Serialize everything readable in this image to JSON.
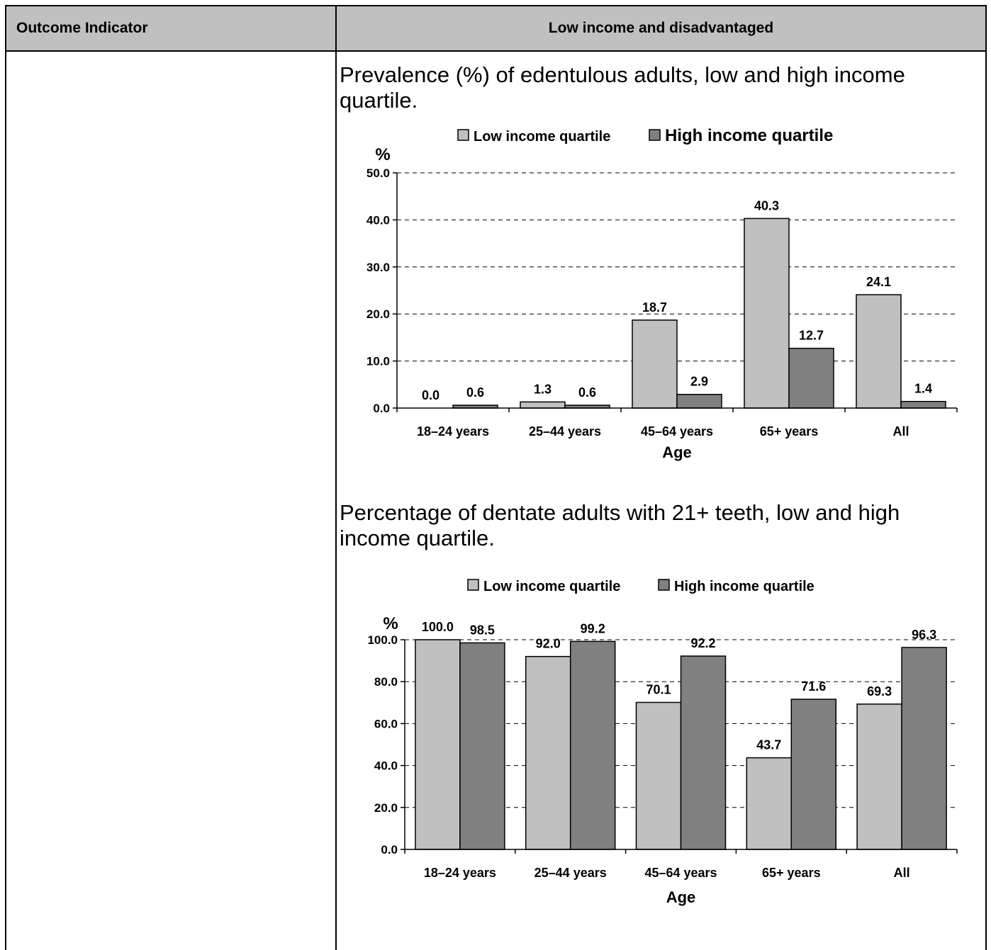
{
  "table": {
    "header_left": "Outcome Indicator",
    "header_right": "Low income and disadvantaged"
  },
  "colors": {
    "low": "#c0c0c0",
    "high": "#808080",
    "header_bg": "#c0c0c0"
  },
  "chart_data": [
    {
      "type": "bar",
      "caption": "Prevalence (%) of edentulous adults, low and high income quartile.",
      "categories": [
        "18–24 years",
        "25–44 years",
        "45–64 years",
        "65+ years",
        "All"
      ],
      "series": [
        {
          "name": "Low income quartile",
          "values": [
            0.0,
            1.3,
            18.7,
            40.3,
            24.1
          ]
        },
        {
          "name": "High income quartile",
          "values": [
            0.6,
            0.6,
            2.9,
            12.7,
            1.4
          ]
        }
      ],
      "value_labels": {
        "low": [
          "0.0",
          "1.3",
          "18.7",
          "40.3",
          "24.1"
        ],
        "high": [
          "0.6",
          "0.6",
          "2.9",
          "12.7",
          "1.4"
        ]
      },
      "xlabel": "Age",
      "ylabel": "%",
      "ylim": [
        0,
        50
      ],
      "yticks": [
        "0.0",
        "10.0",
        "20.0",
        "30.0",
        "40.0",
        "50.0"
      ],
      "grid": "dashed-horizontal",
      "legend": "top"
    },
    {
      "type": "bar",
      "caption": "Percentage of dentate adults with 21+ teeth, low and high income quartile.",
      "categories": [
        "18–24 years",
        "25–44 years",
        "45–64 years",
        "65+ years",
        "All"
      ],
      "series": [
        {
          "name": "Low income quartile",
          "values": [
            100.0,
            92.0,
            70.1,
            43.7,
            69.3
          ]
        },
        {
          "name": "High income quartile",
          "values": [
            98.5,
            99.2,
            92.2,
            71.6,
            96.3
          ]
        }
      ],
      "value_labels": {
        "low": [
          "100.0",
          "92.0",
          "70.1",
          "43.7",
          "69.3"
        ],
        "high": [
          "98.5",
          "99.2",
          "92.2",
          "71.6",
          "96.3"
        ]
      },
      "xlabel": "Age",
      "ylabel": "%",
      "ylim": [
        0,
        100
      ],
      "yticks": [
        "0.0",
        "20.0",
        "40.0",
        "60.0",
        "80.0",
        "100.0"
      ],
      "grid": "dashed-horizontal",
      "legend": "top"
    }
  ]
}
